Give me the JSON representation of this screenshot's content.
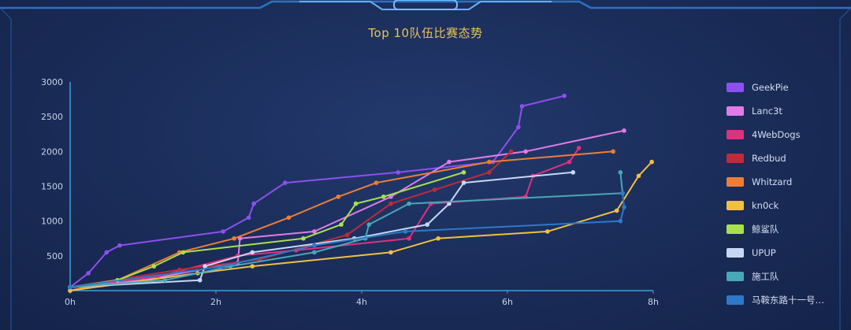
{
  "chart_data": {
    "type": "line",
    "title": "Top 10队伍比赛态势",
    "xlabel": "",
    "ylabel": "",
    "xlim": [
      0,
      8
    ],
    "ylim": [
      0,
      3000
    ],
    "x_ticks": [
      {
        "value": 0,
        "label": "0h"
      },
      {
        "value": 2,
        "label": "2h"
      },
      {
        "value": 4,
        "label": "4h"
      },
      {
        "value": 6,
        "label": "6h"
      },
      {
        "value": 8,
        "label": "8h"
      }
    ],
    "y_ticks": [
      {
        "value": 500,
        "label": "500"
      },
      {
        "value": 1000,
        "label": "1000"
      },
      {
        "value": 1500,
        "label": "1500"
      },
      {
        "value": 2000,
        "label": "2000"
      },
      {
        "value": 2500,
        "label": "2500"
      },
      {
        "value": 3000,
        "label": "3000"
      }
    ],
    "legend_position": "right",
    "grid": false,
    "series": [
      {
        "name": "GeekPie",
        "color": "#8e4ff0",
        "points": [
          [
            0,
            50
          ],
          [
            0.25,
            250
          ],
          [
            0.5,
            550
          ],
          [
            0.68,
            650
          ],
          [
            2.1,
            850
          ],
          [
            2.45,
            1050
          ],
          [
            2.52,
            1250
          ],
          [
            2.95,
            1550
          ],
          [
            4.5,
            1700
          ],
          [
            5.8,
            1850
          ],
          [
            6.15,
            2350
          ],
          [
            6.2,
            2650
          ],
          [
            6.78,
            2800
          ]
        ]
      },
      {
        "name": "Lanc3t",
        "color": "#e07be8",
        "points": [
          [
            0,
            50
          ],
          [
            1.0,
            150
          ],
          [
            2.3,
            400
          ],
          [
            2.33,
            750
          ],
          [
            3.35,
            850
          ],
          [
            4.4,
            1350
          ],
          [
            5.2,
            1850
          ],
          [
            6.25,
            2000
          ],
          [
            7.6,
            2300
          ]
        ]
      },
      {
        "name": "4WebDogs",
        "color": "#e0307e",
        "points": [
          [
            0,
            50
          ],
          [
            1.2,
            200
          ],
          [
            2.3,
            500
          ],
          [
            3.1,
            580
          ],
          [
            4.65,
            750
          ],
          [
            4.95,
            1250
          ],
          [
            6.25,
            1350
          ],
          [
            6.35,
            1650
          ],
          [
            6.85,
            1850
          ],
          [
            6.98,
            2050
          ]
        ]
      },
      {
        "name": "Redbud",
        "color": "#c02a3a",
        "points": [
          [
            0,
            50
          ],
          [
            1.5,
            300
          ],
          [
            2.6,
            450
          ],
          [
            3.8,
            800
          ],
          [
            4.4,
            1250
          ],
          [
            5.0,
            1450
          ],
          [
            5.75,
            1700
          ],
          [
            6.05,
            2000
          ]
        ]
      },
      {
        "name": "Whitzard",
        "color": "#ee7e35",
        "points": [
          [
            0,
            0
          ],
          [
            0.65,
            150
          ],
          [
            1.5,
            550
          ],
          [
            2.25,
            750
          ],
          [
            3.0,
            1050
          ],
          [
            3.68,
            1350
          ],
          [
            4.2,
            1550
          ],
          [
            5.75,
            1850
          ],
          [
            7.45,
            2000
          ]
        ]
      },
      {
        "name": "kn0ck",
        "color": "#f0c040",
        "points": [
          [
            0,
            0
          ],
          [
            1.75,
            250
          ],
          [
            2.5,
            350
          ],
          [
            4.4,
            550
          ],
          [
            5.05,
            750
          ],
          [
            6.55,
            850
          ],
          [
            7.5,
            1150
          ],
          [
            7.8,
            1650
          ],
          [
            7.98,
            1850
          ]
        ]
      },
      {
        "name": "鲸鲨队",
        "color": "#a8e050",
        "points": [
          [
            0,
            50
          ],
          [
            0.65,
            150
          ],
          [
            1.15,
            350
          ],
          [
            1.55,
            550
          ],
          [
            3.2,
            750
          ],
          [
            3.72,
            950
          ],
          [
            3.92,
            1250
          ],
          [
            4.3,
            1350
          ],
          [
            5.4,
            1700
          ]
        ]
      },
      {
        "name": "UPUP",
        "color": "#c8d8f4",
        "points": [
          [
            0,
            50
          ],
          [
            1.78,
            150
          ],
          [
            1.85,
            350
          ],
          [
            2.5,
            550
          ],
          [
            3.9,
            750
          ],
          [
            4.9,
            950
          ],
          [
            5.2,
            1250
          ],
          [
            5.4,
            1550
          ],
          [
            6.9,
            1700
          ]
        ]
      },
      {
        "name": "施工队",
        "color": "#48a8b8",
        "points": [
          [
            0,
            50
          ],
          [
            1.3,
            150
          ],
          [
            2.2,
            350
          ],
          [
            3.35,
            550
          ],
          [
            4.05,
            750
          ],
          [
            4.1,
            950
          ],
          [
            4.65,
            1250
          ],
          [
            7.58,
            1400
          ],
          [
            7.55,
            1700
          ]
        ]
      },
      {
        "name": "马鞍东路十一号…",
        "color": "#2e78c8",
        "points": [
          [
            0,
            50
          ],
          [
            2.1,
            350
          ],
          [
            3.35,
            650
          ],
          [
            4.6,
            850
          ],
          [
            7.55,
            1000
          ],
          [
            7.6,
            1200
          ],
          [
            7.58,
            1400
          ]
        ]
      }
    ]
  }
}
